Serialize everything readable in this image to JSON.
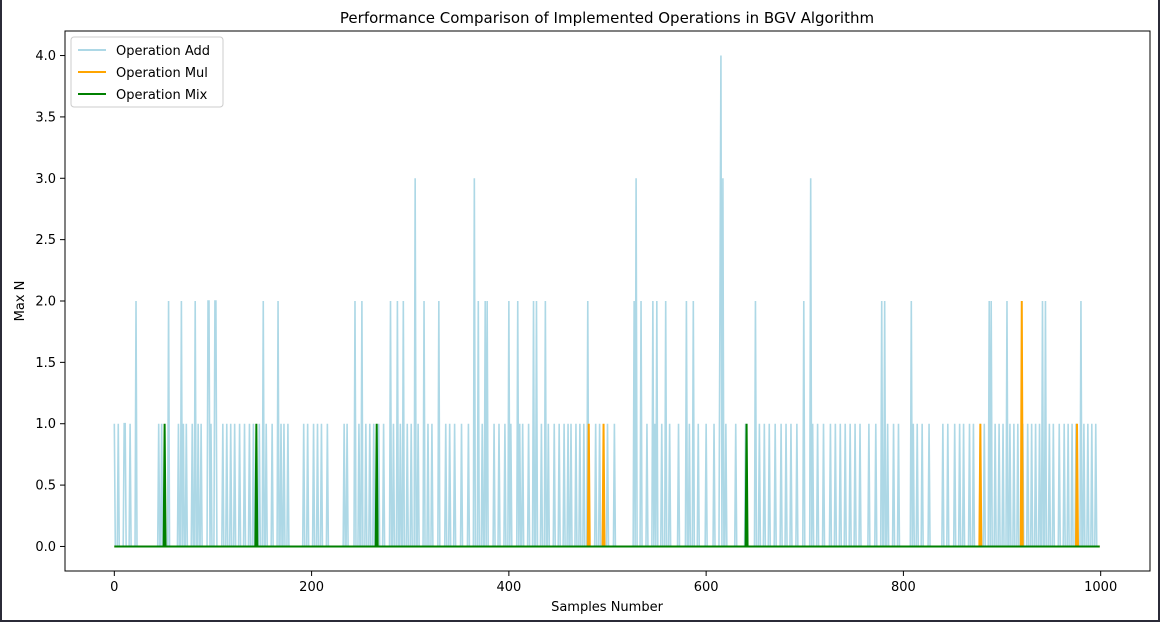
{
  "chart_data": {
    "type": "line",
    "title": "Performance Comparison of Implemented Operations in BGV Algorithm",
    "xlabel": "Samples Number",
    "ylabel": "Max N",
    "xlim": [
      -50,
      1050
    ],
    "ylim": [
      -0.2,
      4.2
    ],
    "xticks": [
      0,
      200,
      400,
      600,
      800,
      1000
    ],
    "yticks": [
      0.0,
      0.5,
      1.0,
      1.5,
      2.0,
      2.5,
      3.0,
      3.5,
      4.0
    ],
    "xtick_labels": [
      "0",
      "200",
      "400",
      "600",
      "800",
      "1000"
    ],
    "ytick_labels": [
      "0.0",
      "0.5",
      "1.0",
      "1.5",
      "2.0",
      "2.5",
      "3.0",
      "3.5",
      "4.0"
    ],
    "grid": false,
    "legend_position": "top-left",
    "n_samples": 1000,
    "series": [
      {
        "name": "Operation Add",
        "color": "#add8e6",
        "nonzero": [
          [
            0,
            1
          ],
          [
            4,
            1
          ],
          [
            10,
            1
          ],
          [
            11,
            1
          ],
          [
            16,
            1
          ],
          [
            22,
            2
          ],
          [
            45,
            1
          ],
          [
            48,
            1
          ],
          [
            55,
            2
          ],
          [
            65,
            1
          ],
          [
            68,
            2
          ],
          [
            70,
            1
          ],
          [
            73,
            1
          ],
          [
            79,
            1
          ],
          [
            82,
            2
          ],
          [
            85,
            1
          ],
          [
            88,
            1
          ],
          [
            95,
            2
          ],
          [
            96,
            2
          ],
          [
            98,
            1
          ],
          [
            102,
            2
          ],
          [
            103,
            2
          ],
          [
            110,
            1
          ],
          [
            114,
            1
          ],
          [
            118,
            1
          ],
          [
            122,
            1
          ],
          [
            127,
            1
          ],
          [
            132,
            1
          ],
          [
            137,
            1
          ],
          [
            141,
            1
          ],
          [
            147,
            1
          ],
          [
            151,
            2
          ],
          [
            154,
            1
          ],
          [
            160,
            1
          ],
          [
            166,
            2
          ],
          [
            169,
            1
          ],
          [
            172,
            1
          ],
          [
            176,
            1
          ],
          [
            192,
            1
          ],
          [
            196,
            1
          ],
          [
            202,
            1
          ],
          [
            206,
            1
          ],
          [
            210,
            1
          ],
          [
            216,
            1
          ],
          [
            233,
            1
          ],
          [
            236,
            1
          ],
          [
            244,
            2
          ],
          [
            248,
            1
          ],
          [
            251,
            2
          ],
          [
            255,
            1
          ],
          [
            259,
            1
          ],
          [
            263,
            1
          ],
          [
            268,
            1
          ],
          [
            273,
            1
          ],
          [
            280,
            2
          ],
          [
            283,
            1
          ],
          [
            287,
            2
          ],
          [
            290,
            1
          ],
          [
            293,
            2
          ],
          [
            297,
            1
          ],
          [
            301,
            1
          ],
          [
            305,
            3
          ],
          [
            308,
            1
          ],
          [
            314,
            2
          ],
          [
            318,
            1
          ],
          [
            322,
            1
          ],
          [
            329,
            2
          ],
          [
            336,
            1
          ],
          [
            340,
            1
          ],
          [
            345,
            1
          ],
          [
            352,
            1
          ],
          [
            359,
            1
          ],
          [
            365,
            3
          ],
          [
            369,
            2
          ],
          [
            373,
            1
          ],
          [
            376,
            2
          ],
          [
            378,
            2
          ],
          [
            385,
            1
          ],
          [
            390,
            1
          ],
          [
            396,
            1
          ],
          [
            400,
            2
          ],
          [
            402,
            1
          ],
          [
            409,
            2
          ],
          [
            411,
            1
          ],
          [
            414,
            1
          ],
          [
            420,
            1
          ],
          [
            425,
            2
          ],
          [
            428,
            2
          ],
          [
            433,
            1
          ],
          [
            437,
            2
          ],
          [
            440,
            1
          ],
          [
            446,
            1
          ],
          [
            451,
            1
          ],
          [
            456,
            1
          ],
          [
            460,
            1
          ],
          [
            463,
            1
          ],
          [
            468,
            1
          ],
          [
            472,
            1
          ],
          [
            476,
            1
          ],
          [
            480,
            2
          ],
          [
            488,
            1
          ],
          [
            492,
            1
          ],
          [
            500,
            1
          ],
          [
            507,
            1
          ],
          [
            527,
            2
          ],
          [
            529,
            3
          ],
          [
            534,
            2
          ],
          [
            540,
            1
          ],
          [
            546,
            2
          ],
          [
            548,
            1
          ],
          [
            550,
            2
          ],
          [
            555,
            1
          ],
          [
            559,
            2
          ],
          [
            563,
            1
          ],
          [
            572,
            1
          ],
          [
            580,
            2
          ],
          [
            583,
            1
          ],
          [
            587,
            2
          ],
          [
            592,
            1
          ],
          [
            600,
            1
          ],
          [
            608,
            1
          ],
          [
            614,
            2
          ],
          [
            615,
            4
          ],
          [
            617,
            3
          ],
          [
            620,
            1
          ],
          [
            630,
            1
          ],
          [
            640,
            1
          ],
          [
            650,
            2
          ],
          [
            654,
            1
          ],
          [
            659,
            1
          ],
          [
            664,
            1
          ],
          [
            670,
            1
          ],
          [
            676,
            1
          ],
          [
            681,
            1
          ],
          [
            686,
            1
          ],
          [
            692,
            1
          ],
          [
            699,
            2
          ],
          [
            706,
            3
          ],
          [
            708,
            1
          ],
          [
            713,
            1
          ],
          [
            719,
            1
          ],
          [
            726,
            1
          ],
          [
            731,
            1
          ],
          [
            736,
            1
          ],
          [
            741,
            1
          ],
          [
            746,
            1
          ],
          [
            751,
            1
          ],
          [
            756,
            1
          ],
          [
            765,
            1
          ],
          [
            772,
            1
          ],
          [
            778,
            2
          ],
          [
            781,
            2
          ],
          [
            784,
            1
          ],
          [
            790,
            1
          ],
          [
            795,
            1
          ],
          [
            808,
            2
          ],
          [
            810,
            1
          ],
          [
            814,
            1
          ],
          [
            819,
            1
          ],
          [
            826,
            1
          ],
          [
            840,
            1
          ],
          [
            845,
            1
          ],
          [
            852,
            1
          ],
          [
            857,
            1
          ],
          [
            861,
            1
          ],
          [
            867,
            1
          ],
          [
            871,
            1
          ],
          [
            878,
            1
          ],
          [
            882,
            1
          ],
          [
            887,
            2
          ],
          [
            889,
            2
          ],
          [
            893,
            1
          ],
          [
            897,
            1
          ],
          [
            901,
            1
          ],
          [
            905,
            2
          ],
          [
            908,
            1
          ],
          [
            912,
            1
          ],
          [
            916,
            1
          ],
          [
            921,
            1
          ],
          [
            926,
            1
          ],
          [
            930,
            1
          ],
          [
            934,
            1
          ],
          [
            938,
            1
          ],
          [
            941,
            2
          ],
          [
            944,
            2
          ],
          [
            948,
            1
          ],
          [
            952,
            1
          ],
          [
            958,
            1
          ],
          [
            963,
            1
          ],
          [
            967,
            1
          ],
          [
            971,
            1
          ],
          [
            975,
            1
          ],
          [
            980,
            2
          ],
          [
            983,
            1
          ],
          [
            987,
            1
          ],
          [
            991,
            1
          ],
          [
            995,
            1
          ]
        ]
      },
      {
        "name": "Operation Mul",
        "color": "#ffa500",
        "nonzero": [
          [
            481,
            1
          ],
          [
            496,
            1
          ],
          [
            878,
            1
          ],
          [
            920,
            2
          ],
          [
            976,
            1
          ]
        ]
      },
      {
        "name": "Operation Mix",
        "color": "#008000",
        "nonzero": [
          [
            51,
            1
          ],
          [
            144,
            1
          ],
          [
            266,
            1
          ],
          [
            641,
            1
          ]
        ]
      }
    ]
  }
}
